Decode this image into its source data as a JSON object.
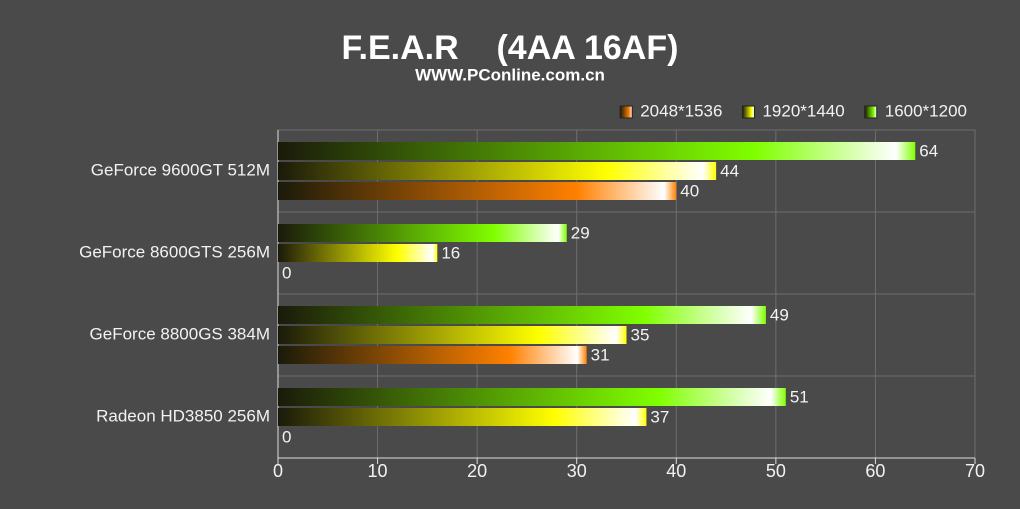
{
  "chart_data": {
    "type": "bar",
    "orientation": "horizontal",
    "title": "F.E.A.R    (4AA 16AF)",
    "subtitle": "WWW.PConline.com.cn",
    "categories": [
      "GeForce 9600GT 512M",
      "GeForce 8600GTS 256M",
      "GeForce 8800GS 384M",
      "Radeon HD3850 256M"
    ],
    "series": [
      {
        "name": "2048*1536",
        "color": "#ff8000",
        "values": [
          40,
          0,
          31,
          0
        ]
      },
      {
        "name": "1920*1440",
        "color": "#ffff00",
        "values": [
          44,
          16,
          35,
          37
        ]
      },
      {
        "name": "1600*1200",
        "color": "#80ff00",
        "values": [
          64,
          29,
          49,
          51
        ]
      }
    ],
    "xlim": [
      0,
      70
    ],
    "xticks": [
      0,
      10,
      20,
      30,
      40,
      50,
      60,
      70
    ],
    "grid": true,
    "legend": "top-right"
  }
}
